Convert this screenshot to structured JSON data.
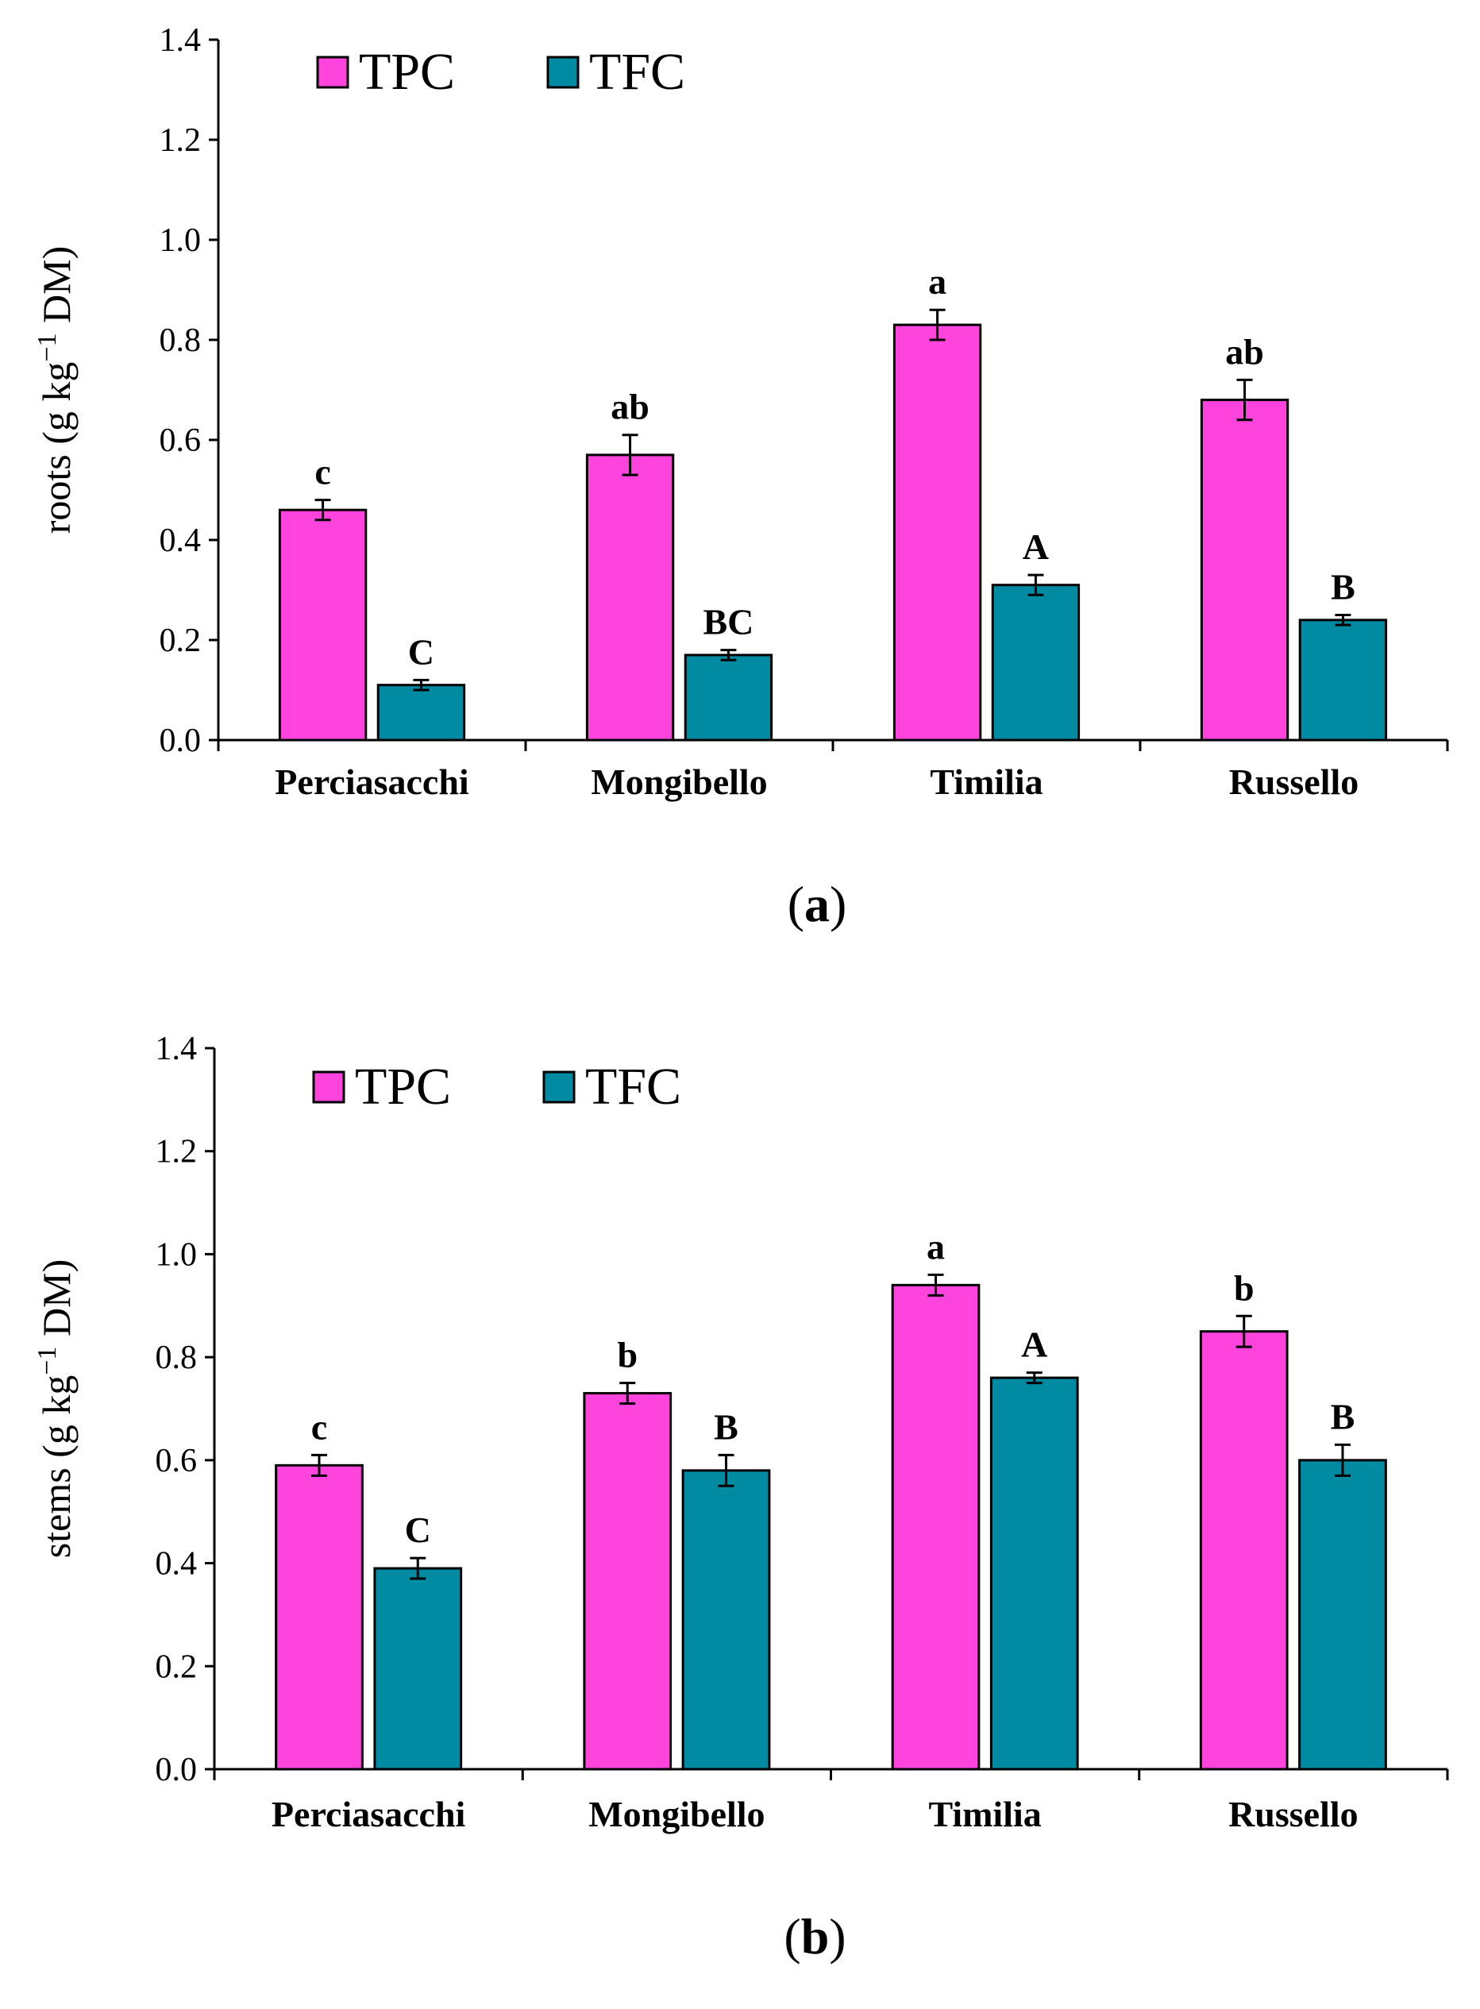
{
  "chart_data": [
    {
      "type": "bar",
      "panel_label": "a",
      "ylabel_main": "roots (g kg",
      "ylabel_sup": "−1",
      "ylabel_tail": " DM)",
      "ylim": [
        0,
        1.4
      ],
      "yticks": [
        "0.0",
        "0.2",
        "0.4",
        "0.6",
        "0.8",
        "1.0",
        "1.2",
        "1.4"
      ],
      "categories": [
        "Perciasacchi",
        "Mongibello",
        "Timilia",
        "Russello"
      ],
      "legend_position": "top-left",
      "series": [
        {
          "name": "TPC",
          "color": "#ff44dd",
          "values": [
            0.46,
            0.57,
            0.83,
            0.68
          ],
          "errors": [
            0.02,
            0.04,
            0.03,
            0.04
          ],
          "labels": [
            "c",
            "ab",
            "a",
            "ab"
          ]
        },
        {
          "name": "TFC",
          "color": "#008ba3",
          "values": [
            0.11,
            0.17,
            0.31,
            0.24
          ],
          "errors": [
            0.01,
            0.01,
            0.02,
            0.01
          ],
          "labels": [
            "C",
            "BC",
            "A",
            "B"
          ]
        }
      ]
    },
    {
      "type": "bar",
      "panel_label": "b",
      "ylabel_main": "stems (g kg",
      "ylabel_sup": "−1",
      "ylabel_tail": " DM)",
      "ylim": [
        0,
        1.4
      ],
      "yticks": [
        "0.0",
        "0.2",
        "0.4",
        "0.6",
        "0.8",
        "1.0",
        "1.2",
        "1.4"
      ],
      "categories": [
        "Perciasacchi",
        "Mongibello",
        "Timilia",
        "Russello"
      ],
      "legend_position": "top-left",
      "series": [
        {
          "name": "TPC",
          "color": "#ff44dd",
          "values": [
            0.59,
            0.73,
            0.94,
            0.85
          ],
          "errors": [
            0.02,
            0.02,
            0.02,
            0.03
          ],
          "labels": [
            "c",
            "b",
            "a",
            "b"
          ]
        },
        {
          "name": "TFC",
          "color": "#008ba3",
          "values": [
            0.39,
            0.58,
            0.76,
            0.6
          ],
          "errors": [
            0.02,
            0.03,
            0.01,
            0.03
          ],
          "labels": [
            "C",
            "B",
            "A",
            "B"
          ]
        }
      ]
    }
  ]
}
